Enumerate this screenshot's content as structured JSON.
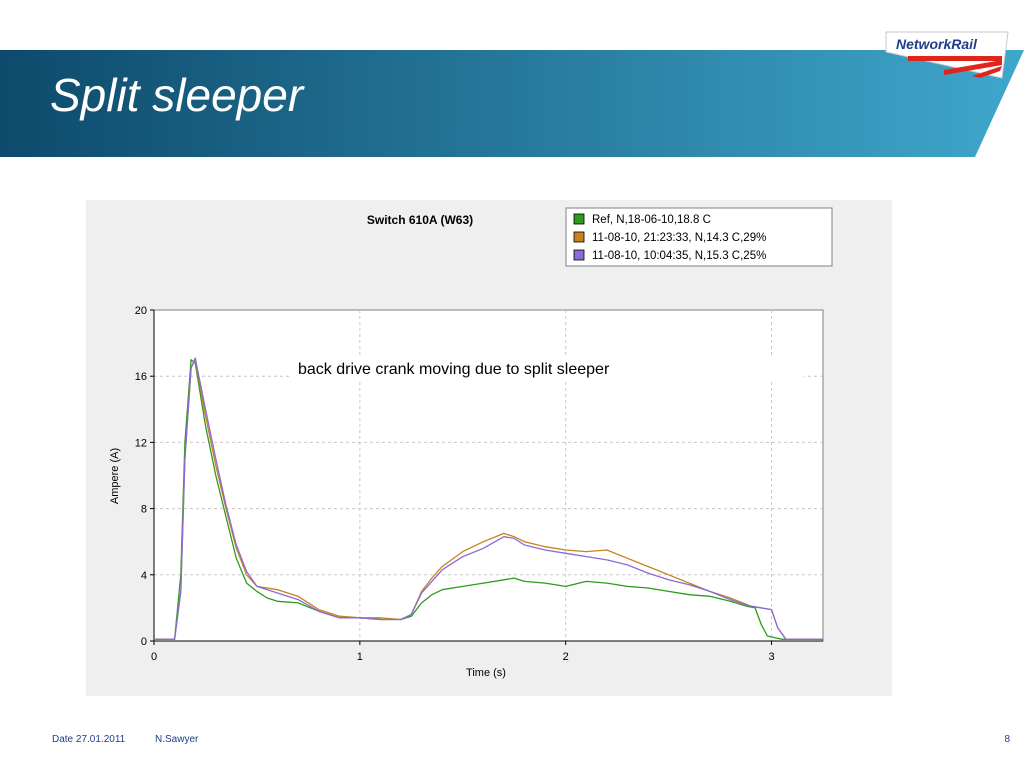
{
  "slide": {
    "title": "Split sleeper",
    "logo_text": "NetworkRail",
    "footer_date": "Date 27.01.2011",
    "footer_author": "N.Sawyer",
    "page_number": "8"
  },
  "colors": {
    "banner_dark": "#0d4a6b",
    "banner_light": "#3fa7cc",
    "logo_blue": "#1f3d8a",
    "logo_red": "#e0261b"
  },
  "chart_data": {
    "type": "line",
    "title": "Switch 610A (W63)",
    "annotation": "back drive crank moving due to split sleeper",
    "xlabel": "Time (s)",
    "ylabel": "Ampere (A)",
    "xlim": [
      0,
      3.25
    ],
    "ylim": [
      0,
      20
    ],
    "xticks": [
      0,
      1,
      2,
      3
    ],
    "yticks": [
      0,
      4,
      8,
      12,
      16,
      20
    ],
    "grid": true,
    "legend_position": "top-right",
    "series": [
      {
        "name": "Ref, N,18-06-10,18.8 C",
        "color": "#2e9b1e",
        "points": [
          [
            0,
            0.1
          ],
          [
            0.1,
            0.1
          ],
          [
            0.13,
            4
          ],
          [
            0.15,
            12
          ],
          [
            0.18,
            17
          ],
          [
            0.2,
            16.8
          ],
          [
            0.25,
            13
          ],
          [
            0.3,
            10
          ],
          [
            0.35,
            7.5
          ],
          [
            0.4,
            5
          ],
          [
            0.45,
            3.5
          ],
          [
            0.5,
            3
          ],
          [
            0.55,
            2.6
          ],
          [
            0.6,
            2.4
          ],
          [
            0.7,
            2.3
          ],
          [
            0.8,
            1.8
          ],
          [
            0.9,
            1.4
          ],
          [
            1.0,
            1.4
          ],
          [
            1.1,
            1.3
          ],
          [
            1.2,
            1.3
          ],
          [
            1.25,
            1.5
          ],
          [
            1.3,
            2.3
          ],
          [
            1.35,
            2.8
          ],
          [
            1.4,
            3.1
          ],
          [
            1.5,
            3.3
          ],
          [
            1.6,
            3.5
          ],
          [
            1.7,
            3.7
          ],
          [
            1.75,
            3.8
          ],
          [
            1.8,
            3.6
          ],
          [
            1.9,
            3.5
          ],
          [
            2.0,
            3.3
          ],
          [
            2.1,
            3.6
          ],
          [
            2.2,
            3.5
          ],
          [
            2.3,
            3.3
          ],
          [
            2.4,
            3.2
          ],
          [
            2.5,
            3.0
          ],
          [
            2.6,
            2.8
          ],
          [
            2.7,
            2.7
          ],
          [
            2.8,
            2.4
          ],
          [
            2.88,
            2.1
          ],
          [
            2.92,
            2.0
          ],
          [
            2.95,
            1.0
          ],
          [
            2.98,
            0.3
          ],
          [
            3.05,
            0.1
          ],
          [
            3.25,
            0.1
          ]
        ]
      },
      {
        "name": "11-08-10, 21:23:33, N,14.3 C,29%",
        "color": "#c8821e",
        "points": [
          [
            0,
            0.1
          ],
          [
            0.1,
            0.1
          ],
          [
            0.13,
            3
          ],
          [
            0.15,
            11
          ],
          [
            0.18,
            16.5
          ],
          [
            0.2,
            17
          ],
          [
            0.25,
            13.6
          ],
          [
            0.3,
            10.6
          ],
          [
            0.35,
            8
          ],
          [
            0.4,
            5.6
          ],
          [
            0.45,
            4
          ],
          [
            0.5,
            3.3
          ],
          [
            0.6,
            3.1
          ],
          [
            0.7,
            2.7
          ],
          [
            0.8,
            1.9
          ],
          [
            0.9,
            1.5
          ],
          [
            1.0,
            1.4
          ],
          [
            1.1,
            1.4
          ],
          [
            1.2,
            1.3
          ],
          [
            1.25,
            1.6
          ],
          [
            1.3,
            3
          ],
          [
            1.35,
            3.8
          ],
          [
            1.4,
            4.5
          ],
          [
            1.5,
            5.4
          ],
          [
            1.6,
            6.0
          ],
          [
            1.7,
            6.5
          ],
          [
            1.75,
            6.3
          ],
          [
            1.8,
            6.0
          ],
          [
            1.9,
            5.7
          ],
          [
            2.0,
            5.5
          ],
          [
            2.1,
            5.4
          ],
          [
            2.2,
            5.5
          ],
          [
            2.3,
            5.0
          ],
          [
            2.4,
            4.5
          ],
          [
            2.5,
            4.0
          ],
          [
            2.6,
            3.5
          ],
          [
            2.7,
            3.0
          ],
          [
            2.8,
            2.6
          ],
          [
            2.9,
            2.1
          ],
          [
            3.0,
            1.9
          ],
          [
            3.03,
            0.8
          ],
          [
            3.07,
            0.1
          ],
          [
            3.25,
            0.1
          ]
        ]
      },
      {
        "name": "11-08-10, 10:04:35, N,15.3 C,25%",
        "color": "#8a6ad8",
        "points": [
          [
            0,
            0.1
          ],
          [
            0.1,
            0.1
          ],
          [
            0.13,
            3
          ],
          [
            0.15,
            11
          ],
          [
            0.18,
            16.5
          ],
          [
            0.2,
            17.1
          ],
          [
            0.25,
            14
          ],
          [
            0.3,
            11
          ],
          [
            0.35,
            8.2
          ],
          [
            0.4,
            5.8
          ],
          [
            0.45,
            4.2
          ],
          [
            0.5,
            3.3
          ],
          [
            0.6,
            2.9
          ],
          [
            0.7,
            2.5
          ],
          [
            0.8,
            1.8
          ],
          [
            0.9,
            1.4
          ],
          [
            1.0,
            1.4
          ],
          [
            1.1,
            1.3
          ],
          [
            1.2,
            1.3
          ],
          [
            1.25,
            1.6
          ],
          [
            1.3,
            2.9
          ],
          [
            1.35,
            3.6
          ],
          [
            1.4,
            4.3
          ],
          [
            1.5,
            5.1
          ],
          [
            1.6,
            5.6
          ],
          [
            1.7,
            6.3
          ],
          [
            1.75,
            6.2
          ],
          [
            1.8,
            5.8
          ],
          [
            1.9,
            5.5
          ],
          [
            2.0,
            5.3
          ],
          [
            2.1,
            5.1
          ],
          [
            2.2,
            4.9
          ],
          [
            2.3,
            4.6
          ],
          [
            2.4,
            4.1
          ],
          [
            2.5,
            3.7
          ],
          [
            2.6,
            3.4
          ],
          [
            2.7,
            3.0
          ],
          [
            2.8,
            2.5
          ],
          [
            2.9,
            2.1
          ],
          [
            3.0,
            1.9
          ],
          [
            3.03,
            0.8
          ],
          [
            3.07,
            0.1
          ],
          [
            3.25,
            0.1
          ]
        ]
      }
    ]
  }
}
